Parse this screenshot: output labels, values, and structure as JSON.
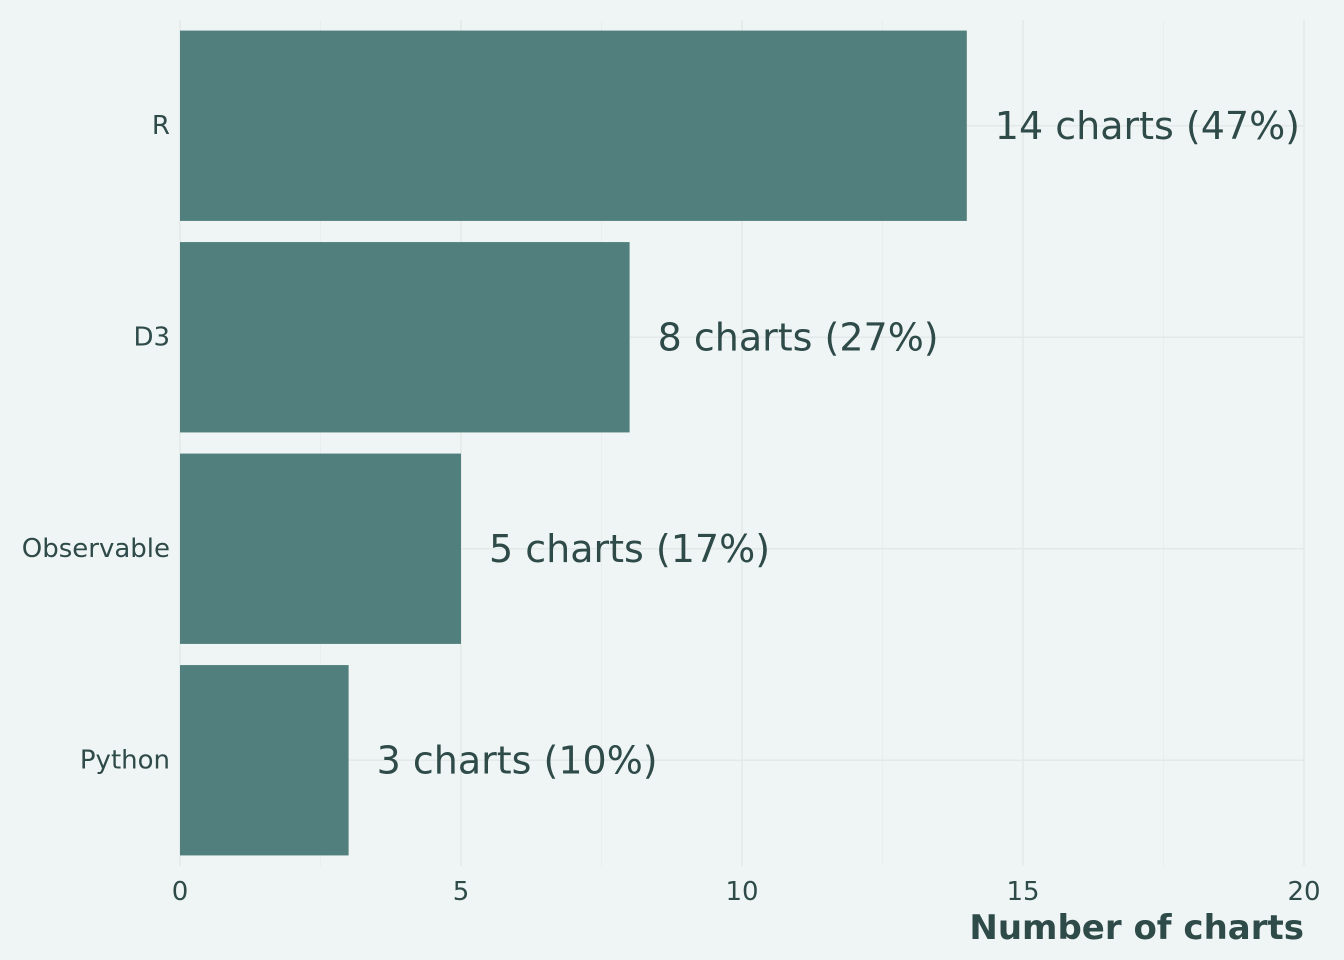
{
  "chart_data": {
    "type": "bar",
    "orientation": "horizontal",
    "categories": [
      "R",
      "D3",
      "Observable",
      "Python"
    ],
    "values": [
      14,
      8,
      5,
      3
    ],
    "data_labels": [
      "14 charts (47%)",
      "8 charts (27%)",
      "5 charts (17%)",
      "3 charts (10%)"
    ],
    "xlabel": "Number of charts",
    "ylabel": "",
    "xlim": [
      0,
      20
    ],
    "xticks": [
      0,
      5,
      10,
      15,
      20
    ],
    "x_minor_ticks": [
      2.5,
      7.5,
      12.5,
      17.5
    ],
    "grid": true,
    "legend": "none",
    "colors": {
      "bar": "#517f7d",
      "text": "#2e4b49",
      "background": "#eff5f4",
      "grid": "#e3e9e8"
    }
  }
}
